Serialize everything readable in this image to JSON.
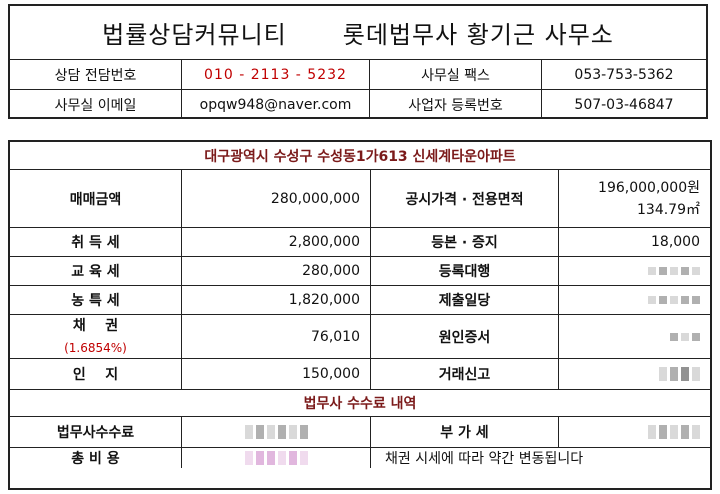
{
  "header": {
    "title_left": "법률상담커뮤니티",
    "title_right": "롯데법무사 황기근 사무소",
    "rows": [
      {
        "label1": "상담 전담번호",
        "value1": "010 - 2113 - 5232",
        "label2": "사무실 팩스",
        "value2": "053-753-5362"
      },
      {
        "label1": "사무실 이메일",
        "value1": "opqw948@naver.com",
        "label2": "사업자 등록번호",
        "value2": "507-03-46847"
      }
    ]
  },
  "property": {
    "address": "대구광역시 수성구 수성동1가613 신세계타운아파트",
    "sale_label": "매매금액",
    "sale_value": "280,000,000",
    "official_label": "공시가격 · 전용면적",
    "official_price": "196,000,000원",
    "area": "134.79㎡"
  },
  "fees": [
    {
      "label": "취 득 세",
      "value": "2,800,000",
      "label2": "등본 · 증지",
      "value2": "18,000"
    },
    {
      "label": "교 육 세",
      "value": "280,000",
      "label2": "등록대행",
      "value2": ""
    },
    {
      "label": "농 특 세",
      "value": "1,820,000",
      "label2": "제출일당",
      "value2": ""
    },
    {
      "label": "채    권",
      "sublabel": "(1.6854%)",
      "value": "76,010",
      "label2": "원인증서",
      "value2": ""
    },
    {
      "label": "인    지",
      "value": "150,000",
      "label2": "거래신고",
      "value2": ""
    }
  ],
  "service": {
    "section_title": "법무사 수수료 내역",
    "fee_label": "법무사수수료",
    "vat_label": "부 가 세",
    "total_label": "총 비 용",
    "note": "채권 시세에 따라 약간 변동됩니다"
  }
}
